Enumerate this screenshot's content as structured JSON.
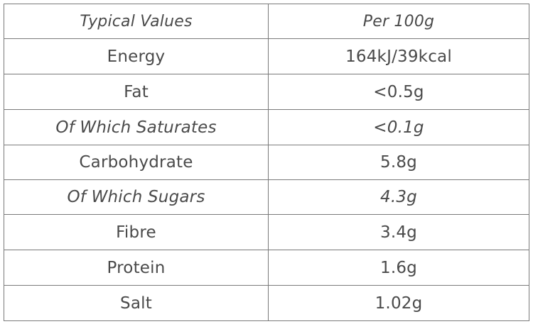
{
  "table": {
    "header": {
      "label": "Typical Values",
      "value": "Per 100g"
    },
    "rows": [
      {
        "label": "Energy",
        "value": "164kJ/39kcal"
      },
      {
        "label": "Fat",
        "value": "<0.5g"
      },
      {
        "label": "Of Which Saturates",
        "value": "<0.1g"
      },
      {
        "label": "Carbohydrate",
        "value": "5.8g"
      },
      {
        "label": "Of Which Sugars",
        "value": "4.3g"
      },
      {
        "label": "Fibre",
        "value": "3.4g"
      },
      {
        "label": "Protein",
        "value": "1.6g"
      },
      {
        "label": "Salt",
        "value": "1.02g"
      }
    ]
  }
}
